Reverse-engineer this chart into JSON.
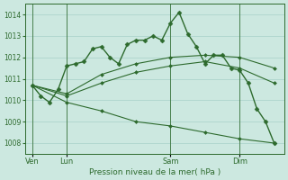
{
  "background_color": "#cce8e0",
  "grid_color": "#aed4cc",
  "line_color": "#2d6a2d",
  "marker_color": "#2d6a2d",
  "title": "Pression niveau de la mer( hPa )",
  "ylim": [
    1007.5,
    1014.5
  ],
  "yticks": [
    1008,
    1009,
    1010,
    1011,
    1012,
    1013,
    1014
  ],
  "xtick_labels": [
    "Ven",
    "Lun",
    "Sam",
    "Dim"
  ],
  "xtick_positions": [
    0,
    24,
    96,
    144
  ],
  "xlim": [
    -5,
    175
  ],
  "series": [
    {
      "x": [
        0,
        6,
        12,
        18,
        24,
        30,
        36,
        42,
        48,
        54,
        60,
        66,
        72,
        78,
        84,
        90,
        96,
        102,
        108,
        114,
        120,
        126,
        132,
        138,
        144,
        150,
        156,
        162,
        168
      ],
      "y": [
        1010.7,
        1010.2,
        1009.9,
        1010.5,
        1011.6,
        1011.7,
        1011.8,
        1012.4,
        1012.5,
        1012.0,
        1011.7,
        1012.6,
        1012.8,
        1012.8,
        1013.0,
        1012.8,
        1013.6,
        1014.1,
        1013.1,
        1012.5,
        1011.7,
        1012.1,
        1012.1,
        1011.5,
        1011.4,
        1010.8,
        1009.6,
        1009.0,
        1008.0
      ],
      "marker": "D",
      "markersize": 2.5,
      "linewidth": 1.0
    },
    {
      "x": [
        0,
        24,
        48,
        72,
        96,
        120,
        144,
        168
      ],
      "y": [
        1010.7,
        1010.3,
        1011.2,
        1011.7,
        1012.0,
        1012.1,
        1012.0,
        1011.5
      ],
      "marker": "D",
      "markersize": 2.0,
      "linewidth": 0.8
    },
    {
      "x": [
        0,
        24,
        48,
        72,
        96,
        120,
        144,
        168
      ],
      "y": [
        1010.7,
        1010.2,
        1010.8,
        1011.3,
        1011.6,
        1011.8,
        1011.5,
        1010.8
      ],
      "marker": "D",
      "markersize": 2.0,
      "linewidth": 0.8
    },
    {
      "x": [
        0,
        24,
        48,
        72,
        96,
        120,
        144,
        168
      ],
      "y": [
        1010.7,
        1009.9,
        1009.5,
        1009.0,
        1008.8,
        1008.5,
        1008.2,
        1008.0
      ],
      "marker": "D",
      "markersize": 2.0,
      "linewidth": 0.8
    }
  ]
}
